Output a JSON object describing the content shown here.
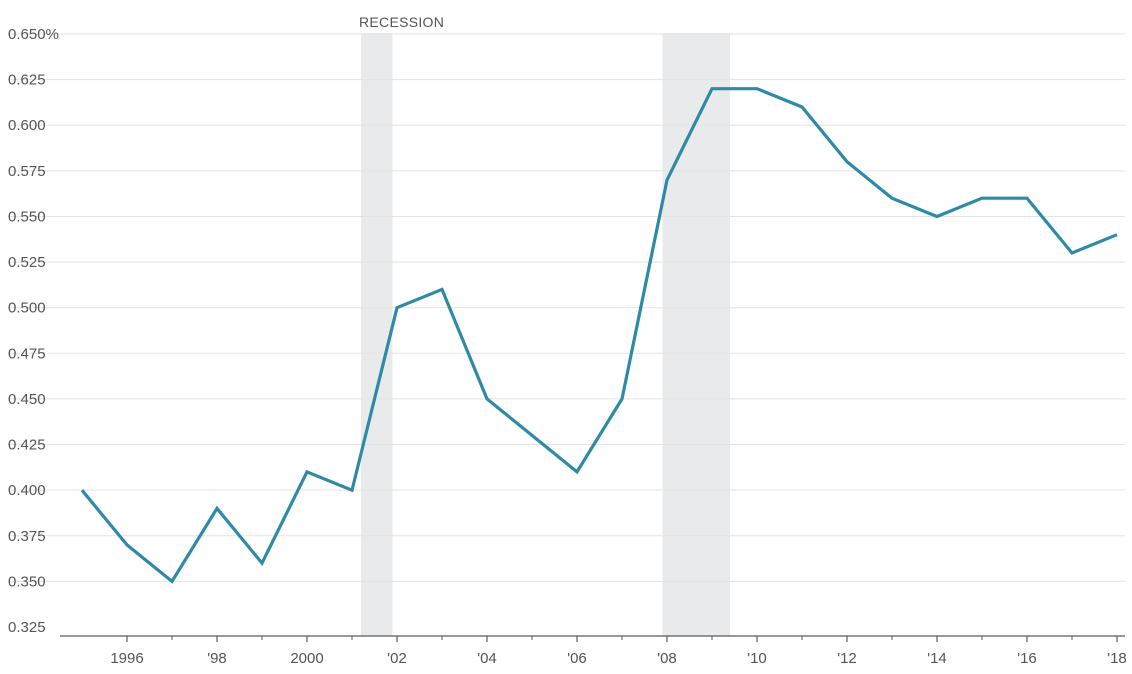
{
  "colors": {
    "line": "#2e8aa7",
    "recession_band": "#e9eaeb",
    "grid": "#e3e3e3",
    "axis": "#5a5a5a",
    "text": "#555555"
  },
  "chart_data": {
    "type": "line",
    "title": "",
    "xlabel": "",
    "ylabel": "",
    "grid": true,
    "xlim": [
      1995,
      2018
    ],
    "ylim": [
      0.325,
      0.65
    ],
    "y_ticks": [
      {
        "value": 0.65,
        "label": "0.650%"
      },
      {
        "value": 0.625,
        "label": "0.625"
      },
      {
        "value": 0.6,
        "label": "0.600"
      },
      {
        "value": 0.575,
        "label": "0.575"
      },
      {
        "value": 0.55,
        "label": "0.550"
      },
      {
        "value": 0.525,
        "label": "0.525"
      },
      {
        "value": 0.5,
        "label": "0.500"
      },
      {
        "value": 0.475,
        "label": "0.475"
      },
      {
        "value": 0.45,
        "label": "0.450"
      },
      {
        "value": 0.425,
        "label": "0.425"
      },
      {
        "value": 0.4,
        "label": "0.400"
      },
      {
        "value": 0.375,
        "label": "0.375"
      },
      {
        "value": 0.35,
        "label": "0.350"
      },
      {
        "value": 0.325,
        "label": "0.325"
      }
    ],
    "x_ticks": [
      {
        "value": 1996,
        "label": "1996"
      },
      {
        "value": 1998,
        "label": "'98"
      },
      {
        "value": 2000,
        "label": "2000"
      },
      {
        "value": 2002,
        "label": "'02"
      },
      {
        "value": 2004,
        "label": "'04"
      },
      {
        "value": 2006,
        "label": "'06"
      },
      {
        "value": 2008,
        "label": "'08"
      },
      {
        "value": 2010,
        "label": "'10"
      },
      {
        "value": 2012,
        "label": "'12"
      },
      {
        "value": 2014,
        "label": "'14"
      },
      {
        "value": 2016,
        "label": "'16"
      },
      {
        "value": 2018,
        "label": "'18"
      }
    ],
    "x_minor_ticks": [
      1997,
      1999,
      2001,
      2003,
      2005,
      2007,
      2009,
      2011,
      2013,
      2015,
      2017
    ],
    "recessions": [
      {
        "start": 2001.2,
        "end": 2001.9
      },
      {
        "start": 2007.9,
        "end": 2009.4
      }
    ],
    "recession_label": "RECESSION",
    "series": [
      {
        "x": [
          1995,
          1996,
          1997,
          1998,
          1999,
          2000,
          2001,
          2002,
          2003,
          2004,
          2005,
          2006,
          2007,
          2008,
          2009,
          2010,
          2011,
          2012,
          2013,
          2014,
          2015,
          2016,
          2017,
          2018
        ],
        "values": [
          0.4,
          0.37,
          0.35,
          0.39,
          0.36,
          0.41,
          0.4,
          0.5,
          0.51,
          0.45,
          0.43,
          0.41,
          0.45,
          0.57,
          0.62,
          0.62,
          0.61,
          0.58,
          0.56,
          0.55,
          0.56,
          0.56,
          0.53,
          0.54
        ]
      }
    ]
  }
}
